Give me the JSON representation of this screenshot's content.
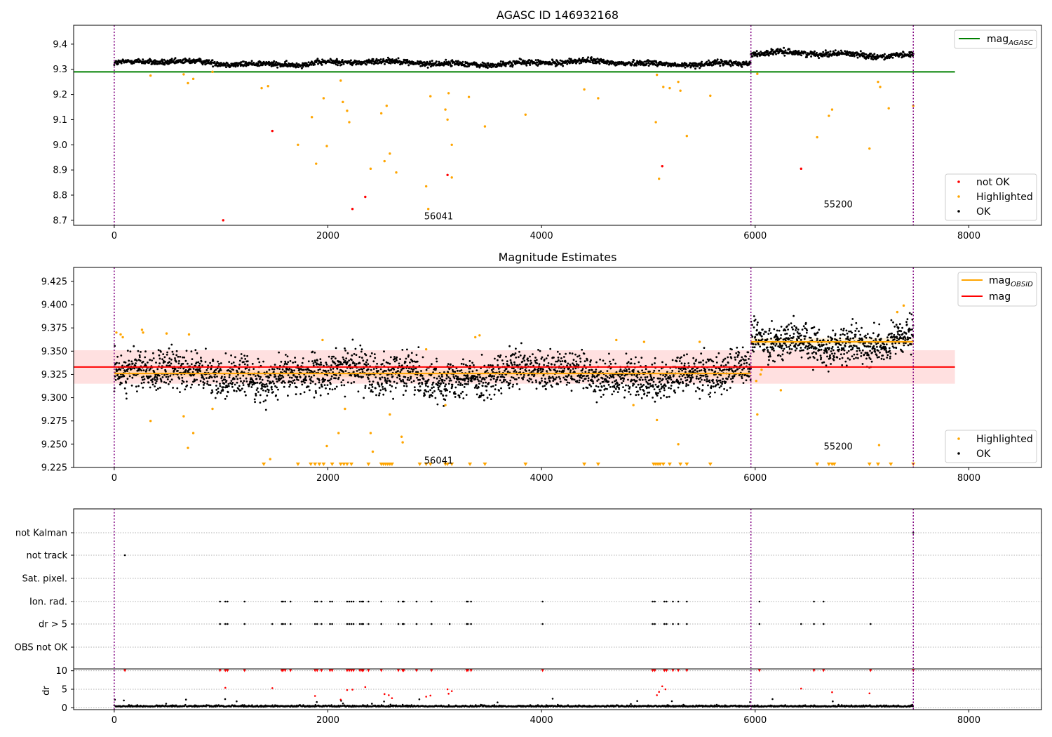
{
  "chart_data": [
    {
      "type": "scatter",
      "title": "AGASC ID 146932168",
      "xlim": [
        -380,
        8680
      ],
      "ylim": [
        8.68,
        9.475
      ],
      "x_ticks": [
        0,
        2000,
        4000,
        6000,
        8000
      ],
      "y_ticks": [
        8.7,
        8.8,
        8.9,
        9.0,
        9.1,
        9.2,
        9.3,
        9.4
      ],
      "y_tick_labels": [
        "8.7",
        "8.8",
        "8.9",
        "9.0",
        "9.1",
        "9.2",
        "9.3",
        "9.4"
      ],
      "segments": [
        {
          "x_start": 0,
          "x_end": 5960,
          "mag_mean": 9.325,
          "label": "56041"
        },
        {
          "x_start": 5960,
          "x_end": 7480,
          "mag_mean": 9.36,
          "label": "55200"
        }
      ],
      "boundaries": [
        0,
        5960,
        7480
      ],
      "segment_labels": [
        {
          "text": "56041",
          "x": 2840,
          "y": 8.718
        },
        {
          "text": "55200",
          "x": 6580,
          "y": 8.765
        }
      ],
      "lines": [
        {
          "name": "mag_AGASC",
          "y": 9.29,
          "x_range": [
            -380,
            7870
          ],
          "color": "#008000"
        }
      ],
      "series": [
        {
          "name": "not OK",
          "color": "#ff0000",
          "points": [
            [
              1480,
              9.055
            ],
            [
              1020,
              8.7
            ],
            [
              2230,
              8.745
            ],
            [
              2350,
              8.793
            ],
            [
              3120,
              8.88
            ],
            [
              5130,
              8.915
            ],
            [
              6430,
              8.905
            ]
          ]
        },
        {
          "name": "Highlighted",
          "color": "#ffa500",
          "points": [
            [
              340,
              9.275
            ],
            [
              650,
              9.28
            ],
            [
              690,
              9.245
            ],
            [
              740,
              9.262
            ],
            [
              920,
              9.29
            ],
            [
              1380,
              9.225
            ],
            [
              1440,
              9.233
            ],
            [
              1720,
              9.0
            ],
            [
              1850,
              9.11
            ],
            [
              1890,
              8.925
            ],
            [
              1960,
              9.185
            ],
            [
              1990,
              8.995
            ],
            [
              2120,
              9.255
            ],
            [
              2140,
              9.17
            ],
            [
              2180,
              9.135
            ],
            [
              2200,
              9.09
            ],
            [
              2400,
              8.905
            ],
            [
              2500,
              9.125
            ],
            [
              2530,
              8.935
            ],
            [
              2550,
              9.155
            ],
            [
              2580,
              8.965
            ],
            [
              2640,
              8.89
            ],
            [
              2920,
              8.835
            ],
            [
              2940,
              8.745
            ],
            [
              2960,
              9.193
            ],
            [
              3100,
              9.14
            ],
            [
              3120,
              9.1
            ],
            [
              3130,
              9.205
            ],
            [
              3160,
              8.87
            ],
            [
              3160,
              9.0
            ],
            [
              3320,
              9.19
            ],
            [
              3470,
              9.073
            ],
            [
              3850,
              9.12
            ],
            [
              4400,
              9.22
            ],
            [
              4530,
              9.185
            ],
            [
              5070,
              9.09
            ],
            [
              5080,
              9.278
            ],
            [
              5100,
              8.865
            ],
            [
              5140,
              9.23
            ],
            [
              5200,
              9.225
            ],
            [
              5280,
              9.25
            ],
            [
              5300,
              9.215
            ],
            [
              5360,
              9.035
            ],
            [
              5580,
              9.195
            ],
            [
              6020,
              9.282
            ],
            [
              6580,
              9.03
            ],
            [
              6690,
              9.115
            ],
            [
              6720,
              9.14
            ],
            [
              7070,
              8.985
            ],
            [
              7150,
              9.25
            ],
            [
              7170,
              9.23
            ],
            [
              7250,
              9.145
            ],
            [
              7480,
              9.155
            ]
          ]
        },
        {
          "name": "OK",
          "color": "#000000",
          "mean_first": 9.325,
          "mean_second": 9.36
        }
      ],
      "legend": {
        "position": "bottom-right",
        "entries": [
          "not OK",
          "Highlighted",
          "OK"
        ],
        "line_legend_position": "top-right",
        "line_entries": [
          {
            "base": "mag",
            "sub": "AGASC"
          }
        ]
      }
    },
    {
      "type": "scatter",
      "title": "Magnitude Estimates",
      "xlim": [
        -380,
        8680
      ],
      "ylim": [
        9.225,
        9.44
      ],
      "x_ticks": [
        0,
        2000,
        4000,
        6000,
        8000
      ],
      "y_ticks": [
        9.225,
        9.25,
        9.275,
        9.3,
        9.325,
        9.35,
        9.375,
        9.4,
        9.425
      ],
      "y_tick_labels": [
        "9.225",
        "9.250",
        "9.275",
        "9.300",
        "9.325",
        "9.350",
        "9.375",
        "9.400",
        "9.425"
      ],
      "boundaries": [
        0,
        5960,
        7480
      ],
      "segment_labels": [
        {
          "text": "56041",
          "x": 2840,
          "y": 9.233
        },
        {
          "text": "55200",
          "x": 6580,
          "y": 9.248
        }
      ],
      "lines": [
        {
          "name": "mag_OBSID",
          "color": "#ffa500",
          "segments": [
            {
              "x": [
                0,
                5960
              ],
              "y": 9.326
            },
            {
              "x": [
                5960,
                7480
              ],
              "y": 9.36
            }
          ]
        },
        {
          "name": "mag",
          "color": "#ff0000",
          "y": 9.333,
          "x_range": [
            -380,
            7870
          ],
          "band": [
            9.315,
            9.351
          ]
        }
      ],
      "series": [
        {
          "name": "Highlighted",
          "color": "#ffa500",
          "points": [
            [
              20,
              9.37
            ],
            [
              60,
              9.368
            ],
            [
              80,
              9.365
            ],
            [
              260,
              9.373
            ],
            [
              270,
              9.37
            ],
            [
              340,
              9.275
            ],
            [
              490,
              9.369
            ],
            [
              650,
              9.28
            ],
            [
              690,
              9.246
            ],
            [
              700,
              9.368
            ],
            [
              740,
              9.262
            ],
            [
              920,
              9.288
            ],
            [
              1460,
              9.234
            ],
            [
              1950,
              9.362
            ],
            [
              1990,
              9.248
            ],
            [
              2100,
              9.262
            ],
            [
              2160,
              9.288
            ],
            [
              2400,
              9.262
            ],
            [
              2420,
              9.242
            ],
            [
              2580,
              9.282
            ],
            [
              2690,
              9.258
            ],
            [
              2700,
              9.252
            ],
            [
              2920,
              9.352
            ],
            [
              3100,
              9.292
            ],
            [
              3380,
              9.365
            ],
            [
              3420,
              9.367
            ],
            [
              4700,
              9.362
            ],
            [
              4860,
              9.292
            ],
            [
              4960,
              9.36
            ],
            [
              5080,
              9.276
            ],
            [
              5280,
              9.25
            ],
            [
              5480,
              9.36
            ],
            [
              6010,
              9.318
            ],
            [
              6020,
              9.282
            ],
            [
              6050,
              9.325
            ],
            [
              6240,
              9.308
            ],
            [
              6060,
              9.33
            ],
            [
              7160,
              9.249
            ],
            [
              7330,
              9.392
            ],
            [
              7390,
              9.399
            ]
          ]
        },
        {
          "name": "Highlighted (below axis)",
          "color": "#ffa500",
          "marker": "triangle-down",
          "x": [
            1400,
            1720,
            1840,
            1880,
            1920,
            1960,
            2040,
            2120,
            2150,
            2180,
            2220,
            2380,
            2500,
            2520,
            2540,
            2560,
            2580,
            2600,
            2860,
            2920,
            2960,
            3100,
            3120,
            3160,
            3330,
            3470,
            3850,
            4400,
            4530,
            5050,
            5070,
            5090,
            5110,
            5140,
            5200,
            5300,
            5360,
            5580,
            6580,
            6690,
            6720,
            6740,
            7070,
            7150,
            7270,
            7480
          ]
        },
        {
          "name": "OK",
          "color": "#000000",
          "mean_first": 9.325,
          "mean_second": 9.36
        }
      ],
      "legend": {
        "position": "bottom-right",
        "entries": [
          "Highlighted",
          "OK"
        ],
        "line_legend_position": "top-right",
        "line_entries": [
          {
            "base": "mag",
            "sub": "OBSID"
          },
          {
            "base": "mag",
            "sub": ""
          }
        ]
      }
    },
    {
      "type": "scatter",
      "title": "",
      "xlim": [
        -380,
        8680
      ],
      "x_ticks": [
        0,
        2000,
        4000,
        6000,
        8000
      ],
      "boundaries": [
        0,
        5960,
        7480
      ],
      "flag_rows": [
        "not Kalman",
        "not track",
        "Sat. pixel.",
        "Ion. rad.",
        "dr > 5",
        "OBS not OK"
      ],
      "flags": {
        "not Kalman": [
          7480
        ],
        "not track": [
          100
        ],
        "Sat. pixel.": [],
        "Ion. rad.": [
          990,
          1040,
          1060,
          1220,
          1570,
          1580,
          1600,
          1650,
          1880,
          1900,
          1940,
          2020,
          2040,
          2180,
          2200,
          2220,
          2240,
          2300,
          2320,
          2330,
          2380,
          2500,
          2660,
          2700,
          2710,
          2830,
          2970,
          3300,
          3310,
          3340,
          4010,
          5040,
          5060,
          5150,
          5170,
          5230,
          5280,
          5360,
          6040,
          6550,
          6640
        ],
        "dr > 5": [
          990,
          1040,
          1060,
          1220,
          1480,
          1570,
          1580,
          1600,
          1650,
          1880,
          1900,
          1940,
          2020,
          2040,
          2180,
          2200,
          2220,
          2240,
          2300,
          2320,
          2330,
          2380,
          2500,
          2660,
          2700,
          2710,
          2830,
          2970,
          3140,
          3300,
          3310,
          3340,
          4010,
          5040,
          5060,
          5150,
          5170,
          5230,
          5280,
          5360,
          6040,
          6430,
          6550,
          6640,
          7080
        ],
        "OBS not OK": []
      },
      "dr_panel": {
        "ylabel": "dr",
        "y_ticks": [
          0,
          5,
          10
        ],
        "ylim": [
          -0.5,
          10.5
        ],
        "clipped_x": [
          100,
          990,
          1040,
          1060,
          1220,
          1570,
          1580,
          1600,
          1650,
          1880,
          1900,
          1940,
          2020,
          2040,
          2180,
          2200,
          2220,
          2240,
          2300,
          2320,
          2330,
          2380,
          2500,
          2660,
          2700,
          2710,
          2830,
          2970,
          3300,
          3310,
          3340,
          4010,
          5040,
          5060,
          5150,
          5170,
          5230,
          5280,
          5360,
          6040,
          6550,
          6640,
          7080,
          7480
        ],
        "red_points": [
          [
            1040,
            5.4
          ],
          [
            1480,
            5.3
          ],
          [
            1880,
            3.2
          ],
          [
            2120,
            2.2
          ],
          [
            2180,
            4.8
          ],
          [
            2230,
            4.9
          ],
          [
            2350,
            5.6
          ],
          [
            2530,
            3.7
          ],
          [
            2570,
            3.4
          ],
          [
            2600,
            2.6
          ],
          [
            2920,
            3.0
          ],
          [
            2960,
            3.3
          ],
          [
            3120,
            5.0
          ],
          [
            3130,
            3.8
          ],
          [
            3160,
            4.5
          ],
          [
            5080,
            3.4
          ],
          [
            5100,
            4.3
          ],
          [
            5130,
            5.8
          ],
          [
            5160,
            5.0
          ],
          [
            6430,
            5.2
          ],
          [
            6720,
            4.2
          ],
          [
            7070,
            3.9
          ]
        ],
        "black_mean": 0.3
      }
    }
  ]
}
